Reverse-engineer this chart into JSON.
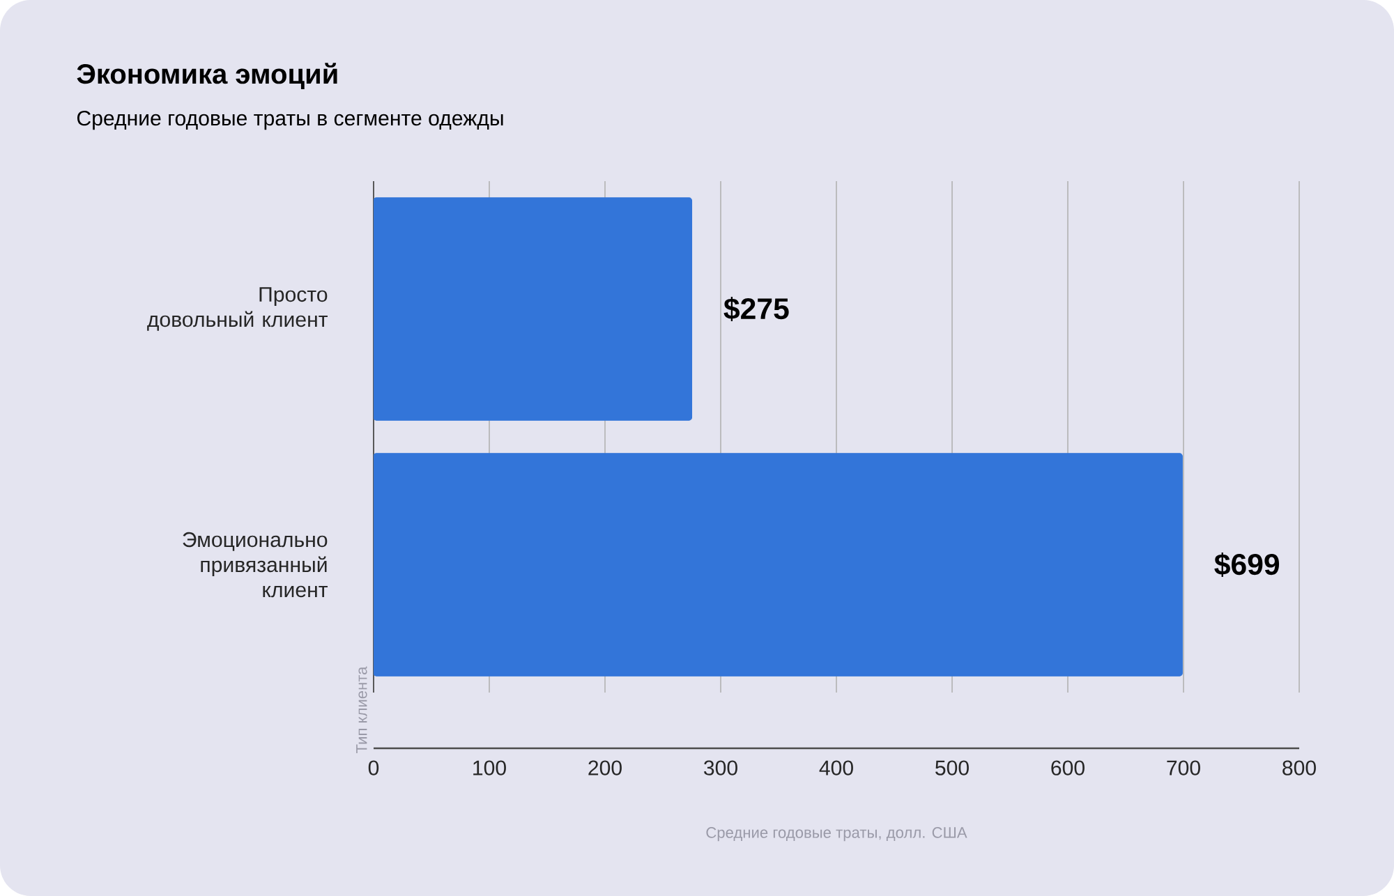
{
  "chart_data": {
    "type": "bar",
    "orientation": "horizontal",
    "title": "Экономика эмоций",
    "subtitle": "Средние годовые траты в сегменте одежды",
    "xlabel": "Средние годовые траты, долл. США",
    "ylabel": "Тип клиента",
    "categories": [
      "Просто довольный клиент",
      "Эмоционально привязанный клиент"
    ],
    "values": [
      275,
      699
    ],
    "value_labels": [
      "$275",
      "$699"
    ],
    "color": "#3375d9",
    "xlim": [
      0,
      800
    ],
    "xticks": [
      0,
      100,
      200,
      300,
      400,
      500,
      600,
      700,
      800
    ],
    "grid": "x"
  }
}
